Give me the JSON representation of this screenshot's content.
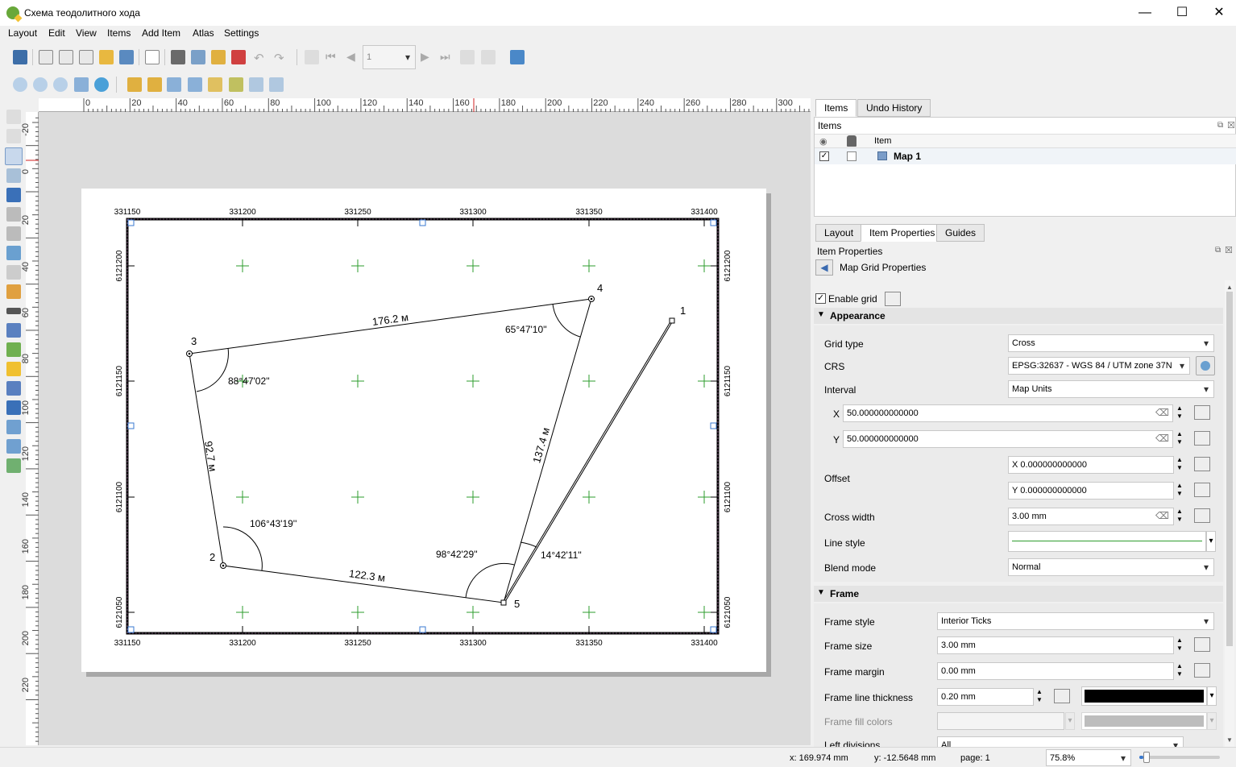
{
  "window": {
    "title": "Схема теодолитного хода",
    "minimize": "—",
    "maximize": "☐",
    "close": "✕"
  },
  "menu": [
    "Layout",
    "Edit",
    "View",
    "Items",
    "Add Item",
    "Atlas",
    "Settings"
  ],
  "toolbar": {
    "page_value": "1"
  },
  "ruler": {
    "h_labels": [
      "0",
      "20",
      "40",
      "60",
      "80",
      "100",
      "120",
      "140",
      "160",
      "180",
      "200",
      "220",
      "240",
      "260",
      "280",
      "300"
    ],
    "v_labels": [
      "-20",
      "0",
      "20",
      "40",
      "60",
      "80",
      "100",
      "120",
      "140",
      "160",
      "180",
      "200",
      "220"
    ]
  },
  "map": {
    "grid_x_labels": [
      "331150",
      "331200",
      "331250",
      "331300",
      "331350",
      "331400"
    ],
    "grid_y_labels": [
      "6121200",
      "6121150",
      "6121100",
      "6121050"
    ],
    "points": [
      {
        "id": "1",
        "label": "1"
      },
      {
        "id": "2",
        "label": "2"
      },
      {
        "id": "3",
        "label": "3"
      },
      {
        "id": "4",
        "label": "4"
      },
      {
        "id": "5",
        "label": "5"
      }
    ],
    "distances": {
      "d34": "176.2 м",
      "d32": "92.7 м",
      "d25": "122.3 м",
      "d54": "137.4 м"
    },
    "angles": {
      "a4": "65°47'10''",
      "a3": "88°47'02''",
      "a2": "106°43'19''",
      "a5": "98°42'29''",
      "a51": "14°42'11''"
    },
    "grid_color": "#2e9e2e"
  },
  "panel": {
    "top_tabs": [
      "Items",
      "Undo History"
    ],
    "items_title": "Items",
    "items_header": "Item",
    "items": [
      {
        "name": "Map 1",
        "visible": true,
        "locked": false
      }
    ],
    "bottom_tabs": [
      "Layout",
      "Item Properties",
      "Guides"
    ],
    "item_properties_title": "Item Properties",
    "subpanel_title": "Map Grid Properties",
    "enable_grid": "Enable grid",
    "appearance": "Appearance",
    "grid_type_label": "Grid type",
    "grid_type_value": "Cross",
    "crs_label": "CRS",
    "crs_value": "EPSG:32637 - WGS 84 / UTM zone 37N",
    "interval_label": "Interval",
    "interval_value": "Map Units",
    "x_label": "X",
    "x_value": "50.000000000000",
    "y_label": "Y",
    "y_value": "50.000000000000",
    "offset_label": "Offset",
    "offset_x": "X 0.000000000000",
    "offset_y": "Y 0.000000000000",
    "cross_width_label": "Cross width",
    "cross_width_value": "3.00 mm",
    "line_style_label": "Line style",
    "blend_mode_label": "Blend mode",
    "blend_mode_value": "Normal",
    "frame": "Frame",
    "frame_style_label": "Frame style",
    "frame_style_value": "Interior Ticks",
    "frame_size_label": "Frame size",
    "frame_size_value": "3.00 mm",
    "frame_margin_label": "Frame margin",
    "frame_margin_value": "0.00 mm",
    "frame_line_label": "Frame line thickness",
    "frame_line_value": "0.20 mm",
    "frame_fill_label": "Frame fill colors",
    "left_div_label": "Left divisions",
    "left_div_value": "All"
  },
  "status": {
    "x": "x: 169.974 mm",
    "y": "y: -12.5648 mm",
    "page": "page: 1",
    "zoom": "75.8%",
    "zoom_level": 0.05
  }
}
